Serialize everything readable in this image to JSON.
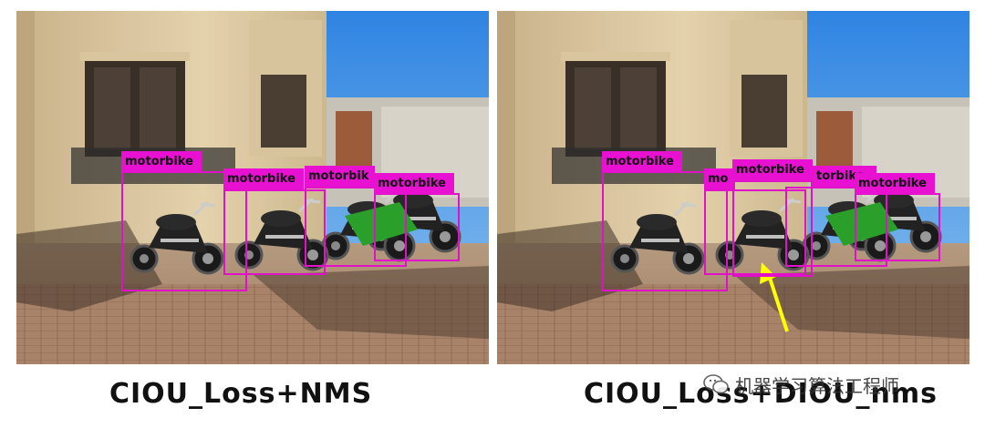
{
  "panels": [
    {
      "caption": "CIOU_Loss+NMS",
      "detections": [
        {
          "label": "motorbike"
        },
        {
          "label": "motorbike"
        },
        {
          "label": "motorbik"
        },
        {
          "label": "motorbike"
        }
      ]
    },
    {
      "caption": "CIOU_Loss+DIOU_nms",
      "detections": [
        {
          "label": "motorbike"
        },
        {
          "label": "mo"
        },
        {
          "label": "motorbike"
        },
        {
          "label": "torbike"
        },
        {
          "label": "motorbike"
        }
      ]
    }
  ],
  "watermark": {
    "text": "机器学习算法工程师",
    "icon": "wechat-icon"
  },
  "colors": {
    "box": "#e011c8",
    "label_bg": "#e811d2",
    "arrow": "#ffff00",
    "sky": "#3c8ee6"
  }
}
